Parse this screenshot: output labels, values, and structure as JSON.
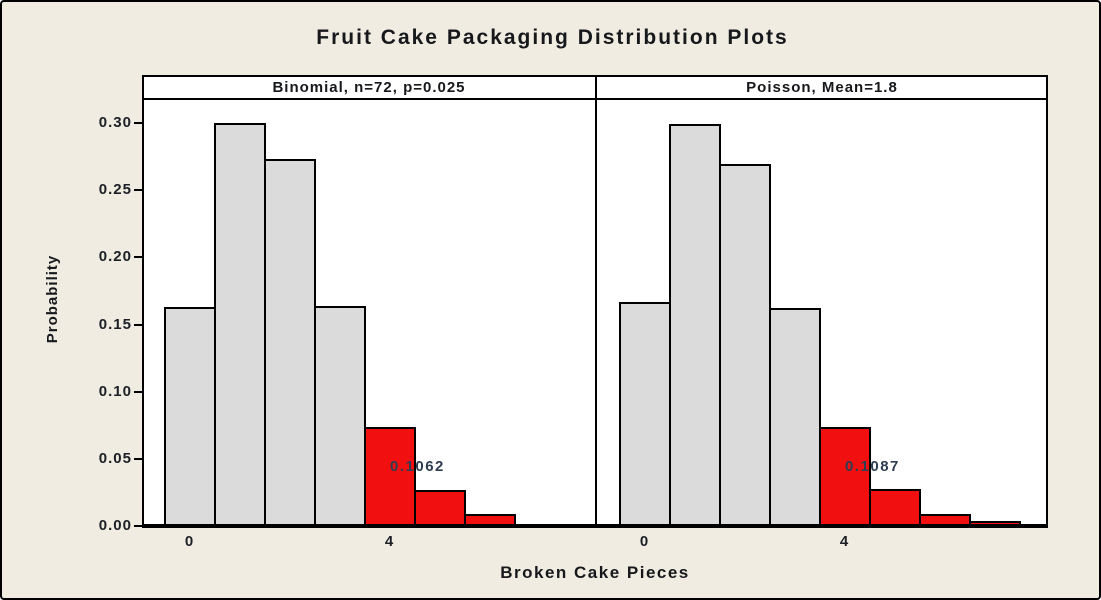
{
  "figure": {
    "title": "Fruit Cake Packaging Distribution Plots"
  },
  "colors": {
    "background": "#f0ece2",
    "plot_background": "#ffffff",
    "bar_fill": "#dbdbdb",
    "highlight_fill": "#f10f0f",
    "line": "#000000",
    "text": "#16181c",
    "annotation_text": "#2e3d52"
  },
  "chart_data": {
    "type": "bar",
    "title": "Fruit Cake Packaging Distribution Plots",
    "xlabel": "Broken Cake Pieces",
    "ylabel": "Probability",
    "ylim": [
      0,
      0.3165
    ],
    "grid": "off",
    "y_ticks": [
      "0.00",
      "0.05",
      "0.10",
      "0.15",
      "0.20",
      "0.25",
      "0.30"
    ],
    "panels": [
      {
        "label": "Binomial, n=72, p=0.025",
        "x": [
          0,
          1,
          2,
          3,
          4,
          5,
          6
        ],
        "values": [
          0.1616,
          0.2984,
          0.2716,
          0.1625,
          0.0719,
          0.0251,
          0.0072
        ],
        "bar_colors": [
          "gray",
          "gray",
          "gray",
          "gray",
          "red",
          "red",
          "red"
        ],
        "x_ticks": [
          0,
          4
        ],
        "annotation": "0.1062"
      },
      {
        "label": "Poisson, Mean=1.8",
        "x": [
          0,
          1,
          2,
          3,
          4,
          5,
          6,
          7
        ],
        "values": [
          0.1653,
          0.2975,
          0.2678,
          0.1607,
          0.0723,
          0.026,
          0.0078,
          0.0021
        ],
        "bar_colors": [
          "gray",
          "gray",
          "gray",
          "gray",
          "red",
          "red",
          "red",
          "red"
        ],
        "x_ticks": [
          0,
          4
        ],
        "annotation": "0.1087"
      }
    ]
  }
}
